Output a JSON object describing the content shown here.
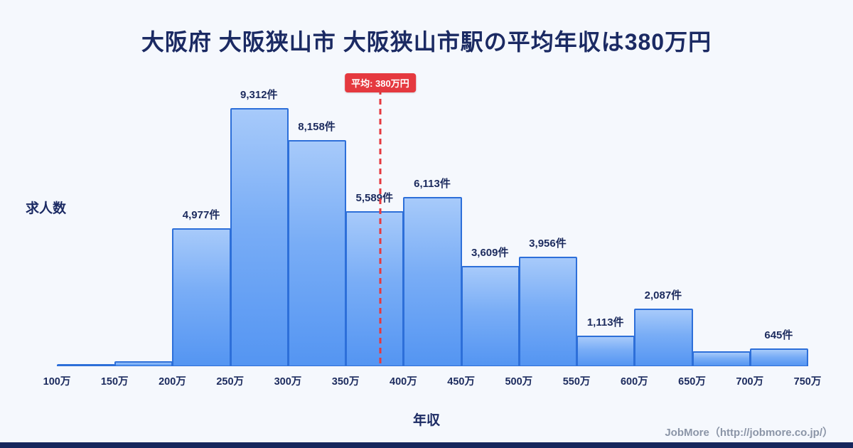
{
  "page": {
    "title": "大阪府 大阪狭山市 大阪狭山市駅の平均年収は380万円",
    "footer": "JobMore（http://jobmore.co.jp/）",
    "colors": {
      "background": "#f5f8fd",
      "title": "#1b2a63",
      "bar_fill_top": "#a7cafa",
      "bar_fill_bottom": "#5495f2",
      "bar_border": "#2d6fd9",
      "average_red": "#e5393f",
      "footer_gray": "#8b95a7",
      "bottom_strip": "#16265c"
    }
  },
  "chart_data": {
    "type": "bar",
    "title": "大阪府 大阪狭山市 大阪狭山市駅の平均年収は380万円",
    "xlabel": "年収",
    "ylabel": "求人数",
    "x_tick_labels": [
      "100万",
      "150万",
      "200万",
      "250万",
      "300万",
      "350万",
      "400万",
      "450万",
      "500万",
      "550万",
      "600万",
      "650万",
      "700万",
      "750万"
    ],
    "x_range_man": [
      100,
      750
    ],
    "bin_width_man": 50,
    "values": [
      80,
      180,
      4977,
      9312,
      8158,
      5589,
      6113,
      3609,
      3956,
      1113,
      2087,
      550,
      645
    ],
    "bar_labels": [
      "",
      "",
      "4,977件",
      "9,312件",
      "8,158件",
      "5,589件",
      "6,113件",
      "3,609件",
      "3,956件",
      "1,113件",
      "2,087件",
      "",
      "645件"
    ],
    "ylim": [
      0,
      10000
    ],
    "grid": false,
    "legend": "none",
    "average_line": {
      "x_man": 380,
      "label": "平均: 380万円"
    }
  }
}
